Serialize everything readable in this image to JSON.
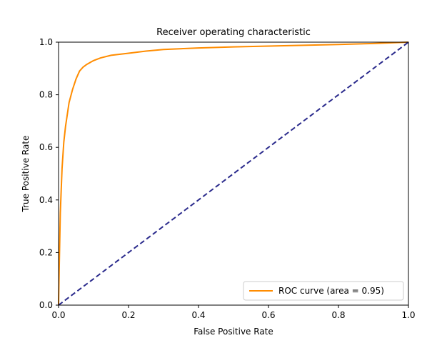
{
  "chart_data": {
    "type": "line",
    "title": "Receiver operating characteristic",
    "xlabel": "False Positive Rate",
    "ylabel": "True Positive Rate",
    "xlim": [
      0.0,
      1.0
    ],
    "ylim": [
      0.0,
      1.0
    ],
    "xticks": [
      "0.0",
      "0.2",
      "0.4",
      "0.6",
      "0.8",
      "1.0"
    ],
    "yticks": [
      "0.0",
      "0.2",
      "0.4",
      "0.6",
      "0.8",
      "1.0"
    ],
    "grid": false,
    "legend_position": "lower-right",
    "series": [
      {
        "name": "ROC curve (area = 0.95)",
        "color": "#ff8c00",
        "style": "solid",
        "x": [
          0.0,
          0.002,
          0.005,
          0.01,
          0.015,
          0.02,
          0.03,
          0.04,
          0.05,
          0.06,
          0.07,
          0.08,
          0.1,
          0.12,
          0.15,
          0.2,
          0.25,
          0.3,
          0.4,
          0.5,
          0.6,
          0.7,
          0.8,
          0.9,
          1.0
        ],
        "y": [
          0.0,
          0.15,
          0.35,
          0.52,
          0.62,
          0.68,
          0.77,
          0.82,
          0.86,
          0.89,
          0.905,
          0.915,
          0.93,
          0.94,
          0.95,
          0.958,
          0.966,
          0.972,
          0.978,
          0.982,
          0.985,
          0.988,
          0.991,
          0.995,
          1.0
        ]
      },
      {
        "name": "",
        "color": "#2a2a8c",
        "style": "dashed",
        "x": [
          0.0,
          1.0
        ],
        "y": [
          0.0,
          1.0
        ]
      }
    ]
  }
}
